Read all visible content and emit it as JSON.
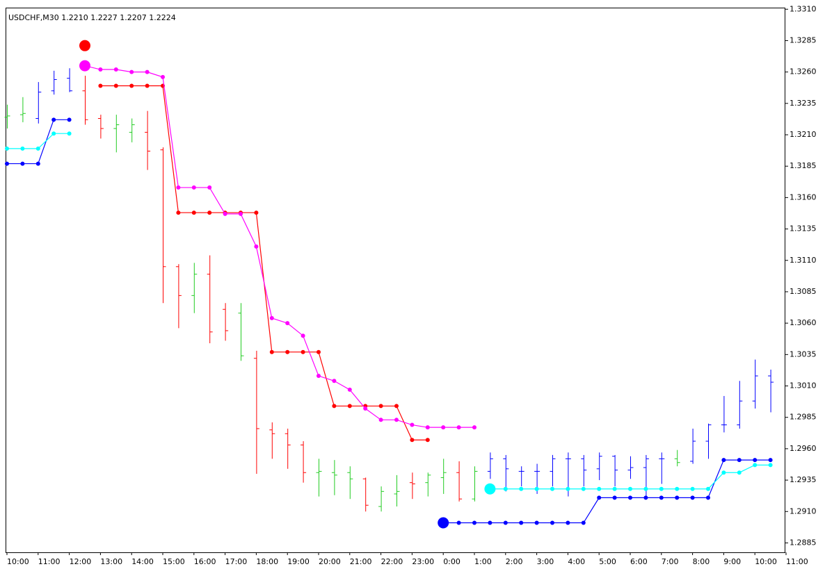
{
  "chart_data": {
    "type": "ohlc",
    "title": "USDCHF,M30  1.2210 1.2227 1.2207 1.2224",
    "categories": [
      "10:00",
      null,
      "11:00",
      null,
      "12:00",
      null,
      "13:00",
      null,
      "14:00",
      null,
      "15:00",
      null,
      "16:00",
      null,
      "17:00",
      null,
      "18:00",
      null,
      "19:00",
      null,
      "20:00",
      null,
      "21:00",
      null,
      "22:00",
      null,
      "23:00",
      null,
      "0:00",
      null,
      "1:00",
      null,
      "2:00",
      null,
      "3:00",
      null,
      "4:00",
      null,
      "5:00",
      null,
      "6:00",
      null,
      "7:00",
      null,
      "8:00",
      null,
      "9:00",
      null,
      "10:00",
      null,
      "11:00"
    ],
    "open": [
      1.3224,
      1.3226,
      1.3223,
      1.3245,
      1.3255,
      1.3245,
      1.3223,
      1.3215,
      1.3212,
      1.3212,
      1.3198,
      1.3105,
      1.3082,
      1.3099,
      1.3071,
      1.3068,
      1.3032,
      1.2975,
      1.2972,
      1.2963,
      1.2941,
      1.2941,
      1.2941,
      1.2936,
      1.2914,
      1.2924,
      1.2933,
      1.2933,
      1.2937,
      1.2941,
      1.292,
      1.2942,
      1.2952,
      1.2942,
      1.2942,
      1.2942,
      1.2952,
      1.2952,
      1.2944,
      1.2954,
      1.2943,
      1.2945,
      1.2952,
      1.2952,
      1.295,
      1.2966,
      1.2979,
      1.2979,
      1.2998,
      1.3018,
      null
    ],
    "high": [
      1.3234,
      1.324,
      1.3252,
      1.3261,
      1.3263,
      1.3257,
      1.3226,
      1.3226,
      1.3223,
      1.3229,
      1.32,
      1.3107,
      1.3108,
      1.3114,
      1.3076,
      1.3076,
      1.3038,
      1.2981,
      1.2976,
      1.2966,
      1.2952,
      1.2951,
      1.2946,
      1.2937,
      1.293,
      1.2939,
      1.2941,
      1.2941,
      1.2952,
      1.295,
      1.2946,
      1.2957,
      1.2955,
      1.2946,
      1.2948,
      1.2955,
      1.2957,
      1.2955,
      1.2957,
      1.2955,
      1.2954,
      1.2955,
      1.2957,
      1.2959,
      1.2976,
      1.298,
      1.3002,
      1.3014,
      1.3031,
      1.3023,
      null
    ],
    "low": [
      1.3215,
      1.322,
      1.3219,
      1.3242,
      1.3244,
      1.3218,
      1.3207,
      1.3196,
      1.3204,
      1.3182,
      1.3076,
      1.3056,
      1.3068,
      1.3044,
      1.3046,
      1.303,
      1.294,
      1.2952,
      1.2944,
      1.2933,
      1.2922,
      1.2923,
      1.292,
      1.291,
      1.291,
      1.2914,
      1.292,
      1.2922,
      1.2924,
      1.2918,
      1.2918,
      1.2936,
      1.2926,
      1.293,
      1.2924,
      1.293,
      1.2922,
      1.293,
      1.2935,
      1.293,
      1.2936,
      1.2922,
      1.2932,
      1.2946,
      1.2948,
      1.2952,
      1.2973,
      1.2976,
      1.2992,
      1.2989,
      null
    ],
    "close": [
      1.3225,
      1.3227,
      1.3244,
      1.3254,
      1.3245,
      1.3222,
      1.3215,
      1.3218,
      1.3218,
      1.3197,
      1.3105,
      1.3082,
      1.3099,
      1.3053,
      1.3054,
      1.3034,
      1.2976,
      1.2972,
      1.2963,
      1.2941,
      1.2942,
      1.2939,
      1.2936,
      1.2915,
      1.2926,
      1.2926,
      1.2932,
      1.2939,
      1.2941,
      1.292,
      1.2942,
      1.2952,
      1.2944,
      1.2942,
      1.2942,
      1.2952,
      1.2952,
      1.2943,
      1.2954,
      1.2943,
      1.2945,
      1.2952,
      1.2952,
      1.2949,
      1.2966,
      1.2979,
      1.2979,
      1.2998,
      1.3018,
      1.3013,
      null
    ],
    "bar_colors": [
      "#22cc22",
      "#22cc22",
      "#0000ff",
      "#0000ff",
      "#0000ff",
      "#ff0000",
      "#ff0000",
      "#22cc22",
      "#22cc22",
      "#ff0000",
      "#ff0000",
      "#ff0000",
      "#22cc22",
      "#ff0000",
      "#ff0000",
      "#22cc22",
      "#ff0000",
      "#ff0000",
      "#ff0000",
      "#ff0000",
      "#22cc22",
      "#22cc22",
      "#22cc22",
      "#ff0000",
      "#22cc22",
      "#22cc22",
      "#ff0000",
      "#22cc22",
      "#22cc22",
      "#ff0000",
      "#22cc22",
      "#0000ff",
      "#0000ff",
      "#0000ff",
      "#0000ff",
      "#0000ff",
      "#0000ff",
      "#0000ff",
      "#0000ff",
      "#0000ff",
      "#0000ff",
      "#0000ff",
      "#0000ff",
      "#22cc22",
      "#0000ff",
      "#0000ff",
      "#0000ff",
      "#0000ff",
      "#0000ff",
      "#0000ff",
      null
    ],
    "lines": [
      {
        "color": "#ff0000",
        "values": [
          null,
          null,
          null,
          null,
          null,
          null,
          1.3249,
          1.3249,
          1.3249,
          1.3249,
          1.3249,
          1.3148,
          1.3148,
          1.3148,
          1.3148,
          1.3148,
          1.3148,
          1.3037,
          1.3037,
          1.3037,
          1.3037,
          1.2994,
          1.2994,
          1.2994,
          1.2994,
          1.2994,
          1.2967,
          1.2967,
          null,
          null,
          null,
          null,
          null,
          null,
          null,
          null,
          null,
          null,
          null,
          null,
          null,
          null,
          null,
          null,
          null,
          null,
          null,
          null,
          null,
          null,
          null
        ],
        "signal_values": [
          null,
          null,
          null,
          null,
          null,
          1.3281,
          null,
          null,
          null,
          null,
          null,
          null,
          null,
          null,
          null,
          null,
          null,
          null,
          null,
          null,
          null,
          null,
          null,
          null,
          null,
          null,
          null,
          null,
          null,
          null,
          null,
          null,
          null,
          null,
          null,
          null,
          null,
          null,
          null,
          null,
          null,
          null,
          null,
          null,
          null,
          null,
          null,
          null,
          null,
          null,
          null
        ]
      },
      {
        "color": "#ff00ff",
        "values": [
          null,
          null,
          null,
          null,
          null,
          1.3265,
          1.3262,
          1.3262,
          1.326,
          1.326,
          1.3256,
          1.3168,
          1.3168,
          1.3168,
          1.3147,
          1.3147,
          1.3121,
          1.3064,
          1.306,
          1.305,
          1.3018,
          1.3014,
          1.3007,
          1.2992,
          1.2983,
          1.2983,
          1.2979,
          1.2977,
          1.2977,
          1.2977,
          1.2977,
          null,
          null,
          null,
          null,
          null,
          null,
          null,
          null,
          null,
          null,
          null,
          null,
          null,
          null,
          null,
          null,
          null,
          null,
          null,
          null
        ],
        "signal_values": [
          null,
          null,
          null,
          null,
          null,
          1.3265,
          null,
          null,
          null,
          null,
          null,
          null,
          null,
          null,
          null,
          null,
          null,
          null,
          null,
          null,
          null,
          null,
          null,
          null,
          null,
          null,
          null,
          null,
          null,
          null,
          null,
          null,
          null,
          null,
          null,
          null,
          null,
          null,
          null,
          null,
          null,
          null,
          null,
          null,
          null,
          null,
          null,
          null,
          null,
          null,
          null
        ]
      },
      {
        "color": "#0000ff",
        "values": [
          1.3187,
          1.3187,
          1.3187,
          1.3222,
          1.3222,
          null,
          null,
          null,
          null,
          null,
          null,
          null,
          null,
          null,
          null,
          null,
          null,
          null,
          null,
          null,
          null,
          null,
          null,
          null,
          null,
          null,
          null,
          null,
          1.2901,
          1.2901,
          1.2901,
          1.2901,
          1.2901,
          1.2901,
          1.2901,
          1.2901,
          1.2901,
          1.2901,
          1.2921,
          1.2921,
          1.2921,
          1.2921,
          1.2921,
          1.2921,
          1.2921,
          1.2921,
          1.2951,
          1.2951,
          1.2951,
          1.2951,
          null
        ],
        "signal_values": [
          null,
          null,
          null,
          null,
          null,
          null,
          null,
          null,
          null,
          null,
          null,
          null,
          null,
          null,
          null,
          null,
          null,
          null,
          null,
          null,
          null,
          null,
          null,
          null,
          null,
          null,
          null,
          null,
          1.2901,
          null,
          null,
          null,
          null,
          null,
          null,
          null,
          null,
          null,
          null,
          null,
          null,
          null,
          null,
          null,
          null,
          null,
          null,
          null,
          null,
          null,
          null
        ]
      },
      {
        "color": "#00ffff",
        "values": [
          1.3199,
          1.3199,
          1.3199,
          1.3211,
          1.3211,
          null,
          null,
          null,
          null,
          null,
          null,
          null,
          null,
          null,
          null,
          null,
          null,
          null,
          null,
          null,
          null,
          null,
          null,
          null,
          null,
          null,
          null,
          null,
          null,
          null,
          null,
          1.2928,
          1.2928,
          1.2928,
          1.2928,
          1.2928,
          1.2928,
          1.2928,
          1.2928,
          1.2928,
          1.2928,
          1.2928,
          1.2928,
          1.2928,
          1.2928,
          1.2928,
          1.2941,
          1.2941,
          1.2947,
          1.2947,
          null
        ],
        "signal_values": [
          null,
          null,
          null,
          null,
          null,
          null,
          null,
          null,
          null,
          null,
          null,
          null,
          null,
          null,
          null,
          null,
          null,
          null,
          null,
          null,
          null,
          null,
          null,
          null,
          null,
          null,
          null,
          null,
          null,
          null,
          null,
          1.2928,
          null,
          null,
          null,
          null,
          null,
          null,
          null,
          null,
          null,
          null,
          null,
          null,
          null,
          null,
          null,
          null,
          null,
          null,
          null
        ]
      }
    ],
    "ylim": [
      1.28775,
      1.33107
    ],
    "yticks": [
      1.2885,
      {
        "value": 1.291,
        "label": "1.2910"
      },
      1.2935,
      {
        "value": 1.296,
        "label": "1.2960"
      },
      1.2985,
      {
        "value": 1.301,
        "label": "1.3010"
      },
      1.3035,
      {
        "value": 1.306,
        "label": "1.3060"
      },
      1.3085,
      {
        "value": 1.311,
        "label": "1.3110"
      },
      1.3135,
      {
        "value": 1.316,
        "label": "1.3160"
      },
      1.3185,
      {
        "value": 1.321,
        "label": "1.3210"
      },
      1.3235,
      {
        "value": 1.326,
        "label": "1.3260"
      },
      1.3285,
      {
        "value": 1.331,
        "label": "1.3310"
      }
    ]
  }
}
